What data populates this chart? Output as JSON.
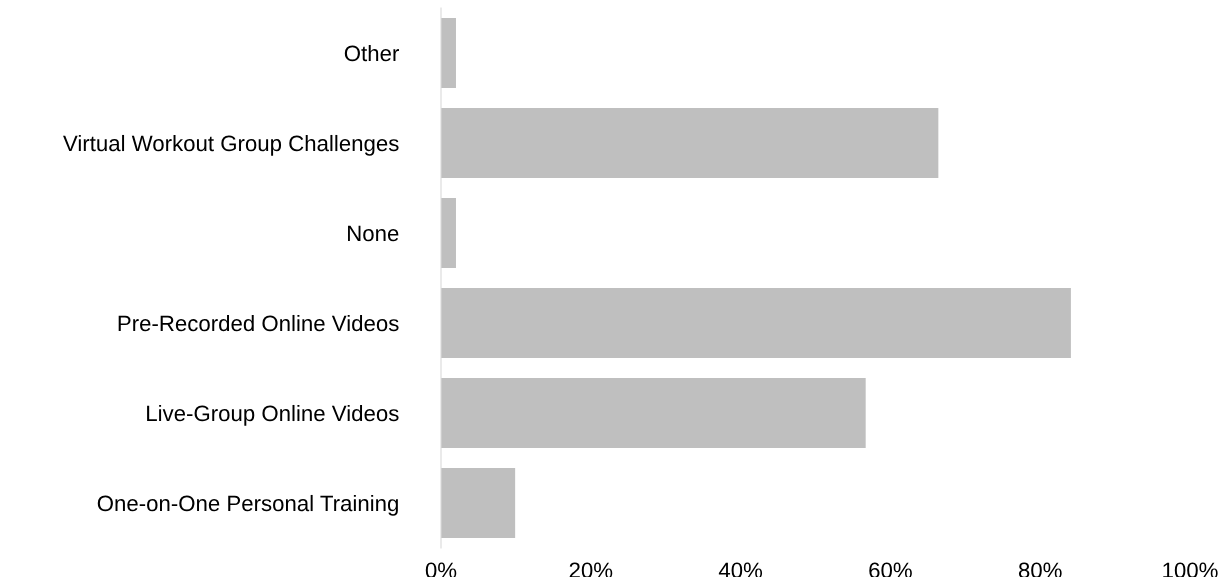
{
  "chart_data": {
    "type": "bar",
    "orientation": "horizontal",
    "categories": [
      "Other",
      "Virtual Workout Group Challenges",
      "None",
      "Pre-Recorded Online Videos",
      "Live-Group Online Videos",
      "One-on-One Personal Training"
    ],
    "values": [
      2,
      66.4,
      2,
      84.1,
      56.7,
      9.9
    ],
    "color": "#bfbfbf",
    "xlim": [
      0,
      100
    ],
    "xticks": [
      {
        "value": 0,
        "label": "0%"
      },
      {
        "value": 20,
        "label": "20%"
      },
      {
        "value": 40,
        "label": "40%"
      },
      {
        "value": 60,
        "label": "60%"
      },
      {
        "value": 80,
        "label": "80%"
      },
      {
        "value": 100,
        "label": "100%"
      }
    ],
    "grid": false,
    "legend": false
  }
}
